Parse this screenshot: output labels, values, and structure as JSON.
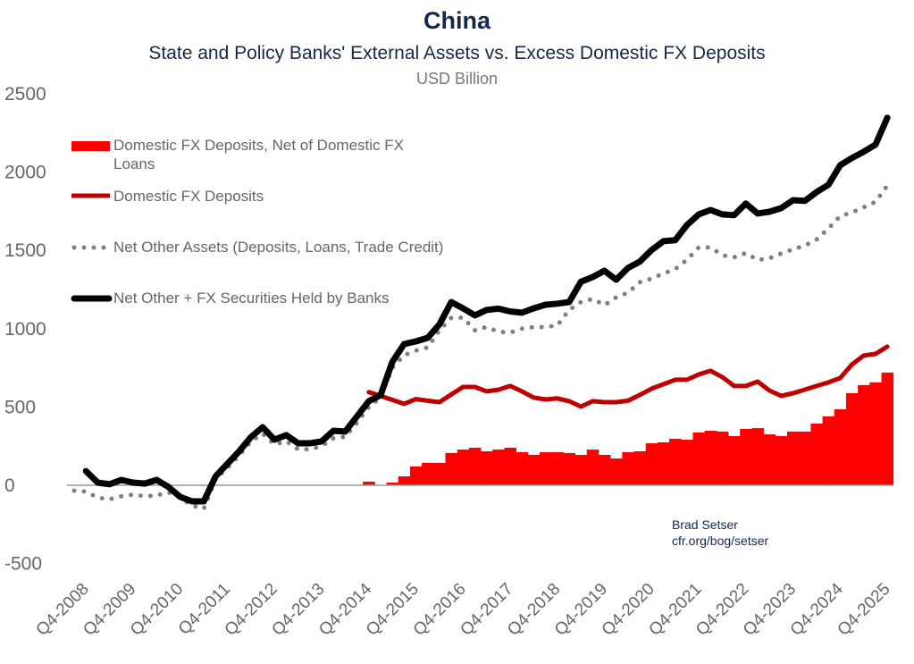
{
  "chart_data": {
    "type": "bar+line",
    "title": "China",
    "subtitle": "State and Policy Banks' External Assets vs. Excess Domestic FX Deposits",
    "ylabel": "USD Billion",
    "ylim": [
      -500,
      2500
    ],
    "yticks": [
      -500,
      0,
      500,
      1000,
      1500,
      2000,
      2500
    ],
    "xtick_labels": [
      "Q4-2008",
      "Q4-2009",
      "Q4-2010",
      "Q4-2011",
      "Q4-2012",
      "Q4-2013",
      "Q4-2014",
      "Q4-2015",
      "Q4-2016",
      "Q4-2017",
      "Q4-2018",
      "Q4-2019",
      "Q4-2020",
      "Q4-2021",
      "Q4-2022",
      "Q4-2023",
      "Q4-2024",
      "Q4-2025"
    ],
    "grid": false,
    "legend_position": "top-left",
    "x": [
      "Q3-2008",
      "Q4-2008",
      "Q1-2009",
      "Q2-2009",
      "Q3-2009",
      "Q4-2009",
      "Q1-2010",
      "Q2-2010",
      "Q3-2010",
      "Q4-2010",
      "Q1-2011",
      "Q2-2011",
      "Q3-2011",
      "Q4-2011",
      "Q1-2012",
      "Q2-2012",
      "Q3-2012",
      "Q4-2012",
      "Q1-2013",
      "Q2-2013",
      "Q3-2013",
      "Q4-2013",
      "Q1-2014",
      "Q2-2014",
      "Q3-2014",
      "Q4-2014",
      "Q1-2015",
      "Q2-2015",
      "Q3-2015",
      "Q4-2015",
      "Q1-2016",
      "Q2-2016",
      "Q3-2016",
      "Q4-2016",
      "Q1-2017",
      "Q2-2017",
      "Q3-2017",
      "Q4-2017",
      "Q1-2018",
      "Q2-2018",
      "Q3-2018",
      "Q4-2018",
      "Q1-2019",
      "Q2-2019",
      "Q3-2019",
      "Q4-2019",
      "Q1-2020",
      "Q2-2020",
      "Q3-2020",
      "Q4-2020",
      "Q1-2021",
      "Q2-2021",
      "Q3-2021",
      "Q4-2021",
      "Q1-2022",
      "Q2-2022",
      "Q3-2022",
      "Q4-2022",
      "Q1-2023",
      "Q2-2023",
      "Q3-2023",
      "Q4-2023",
      "Q1-2024",
      "Q2-2024",
      "Q3-2024",
      "Q4-2024",
      "Q1-2025",
      "Q2-2025",
      "Q3-2025",
      "Q4-2025"
    ],
    "series": [
      {
        "name": "Domestic FX Deposits, Net of Domestic FX Loans",
        "kind": "bar",
        "color": "#ff0000",
        "values": [
          null,
          null,
          null,
          null,
          null,
          null,
          null,
          null,
          null,
          null,
          null,
          null,
          null,
          null,
          null,
          null,
          null,
          null,
          null,
          null,
          null,
          null,
          null,
          null,
          null,
          23,
          0,
          17,
          57,
          120,
          143,
          143,
          206,
          228,
          240,
          217,
          228,
          240,
          211,
          194,
          211,
          211,
          206,
          194,
          228,
          194,
          171,
          211,
          217,
          268,
          274,
          297,
          291,
          337,
          348,
          343,
          314,
          360,
          365,
          325,
          314,
          343,
          343,
          394,
          440,
          485,
          588,
          640,
          657,
          720
        ]
      },
      {
        "name": "Domestic FX Deposits",
        "kind": "line",
        "color": "#c00000",
        "values": [
          null,
          null,
          null,
          null,
          null,
          null,
          null,
          null,
          null,
          null,
          null,
          null,
          null,
          null,
          null,
          null,
          null,
          null,
          null,
          null,
          null,
          null,
          null,
          null,
          null,
          595,
          571,
          545,
          520,
          550,
          540,
          531,
          580,
          628,
          628,
          600,
          610,
          634,
          600,
          560,
          548,
          555,
          537,
          502,
          537,
          531,
          531,
          540,
          577,
          617,
          645,
          674,
          674,
          708,
          731,
          691,
          634,
          634,
          662,
          605,
          571,
          588,
          611,
          634,
          657,
          685,
          771,
          828,
          839,
          885
        ]
      },
      {
        "name": "Net Other Assets (Deposits, Loans, Trade Credit)",
        "kind": "dotted",
        "color": "#7f7f7f",
        "values": [
          -35,
          -40,
          -80,
          -90,
          -70,
          -60,
          -70,
          -65,
          -45,
          -80,
          -130,
          -150,
          40,
          110,
          190,
          280,
          330,
          260,
          280,
          230,
          230,
          250,
          300,
          310,
          400,
          500,
          560,
          750,
          830,
          860,
          880,
          990,
          1070,
          1070,
          990,
          1010,
          980,
          975,
          1000,
          1010,
          1010,
          1020,
          1120,
          1170,
          1190,
          1150,
          1200,
          1230,
          1296,
          1320,
          1353,
          1380,
          1440,
          1519,
          1519,
          1470,
          1456,
          1483,
          1439,
          1450,
          1480,
          1507,
          1530,
          1570,
          1640,
          1719,
          1742,
          1775,
          1810,
          1913
        ]
      },
      {
        "name": "Net Other + FX Securities Held by Banks",
        "kind": "line",
        "color": "#000000",
        "values": [
          null,
          91,
          17,
          6,
          34,
          17,
          11,
          34,
          -11,
          -74,
          -103,
          -103,
          57,
          137,
          217,
          308,
          371,
          291,
          320,
          268,
          268,
          280,
          348,
          343,
          440,
          537,
          575,
          788,
          902,
          919,
          942,
          1028,
          1170,
          1130,
          1085,
          1120,
          1128,
          1110,
          1102,
          1130,
          1153,
          1160,
          1170,
          1300,
          1330,
          1370,
          1313,
          1388,
          1428,
          1502,
          1559,
          1565,
          1662,
          1730,
          1758,
          1730,
          1725,
          1799,
          1736,
          1747,
          1770,
          1821,
          1816,
          1873,
          1919,
          2044,
          2090,
          2130,
          2175,
          2347
        ]
      }
    ]
  },
  "credit": {
    "author": "Brad Setser",
    "url": "cfr.org/bog/setser"
  }
}
